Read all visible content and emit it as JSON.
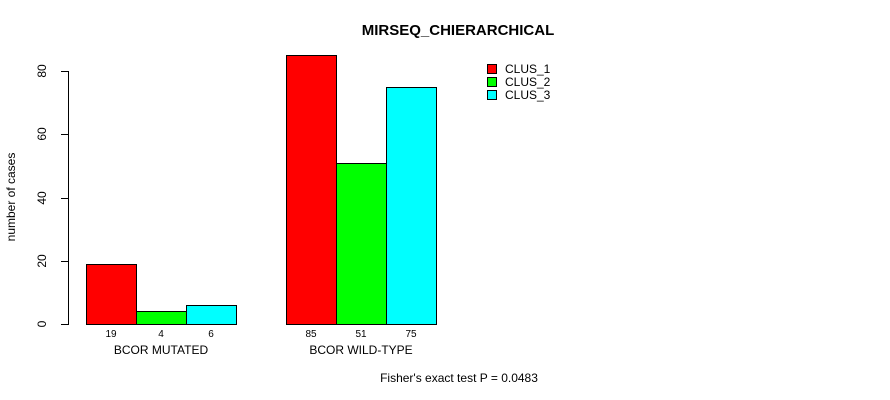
{
  "title": "MIRSEQ_CHIERARCHICAL",
  "footer": "Fisher's exact test P = 0.0483",
  "colors": {
    "clus_1": "#FF0000",
    "clus_2": "#00FF00",
    "clus_3": "#00FFFF",
    "axis": "#000000",
    "background": "#FFFFFF"
  },
  "chart_data": {
    "type": "bar",
    "title": "MIRSEQ_CHIERARCHICAL",
    "xlabel": "",
    "ylabel": "number of cases",
    "categories": [
      "BCOR MUTATED",
      "BCOR WILD-TYPE"
    ],
    "series": [
      {
        "name": "CLUS_1",
        "color": "#FF0000",
        "values": [
          19,
          85
        ]
      },
      {
        "name": "CLUS_2",
        "color": "#00FF00",
        "values": [
          4,
          51
        ]
      },
      {
        "name": "CLUS_3",
        "color": "#00FFFF",
        "values": [
          6,
          75
        ]
      }
    ],
    "bar_value_labels": [
      [
        "19",
        "4",
        "6"
      ],
      [
        "85",
        "51",
        "75"
      ]
    ],
    "yticks": [
      0,
      20,
      40,
      60,
      80
    ],
    "ylim": [
      0,
      85
    ],
    "grid": false,
    "legend_position": "top-right",
    "annotation": "Fisher's exact test P = 0.0483"
  }
}
